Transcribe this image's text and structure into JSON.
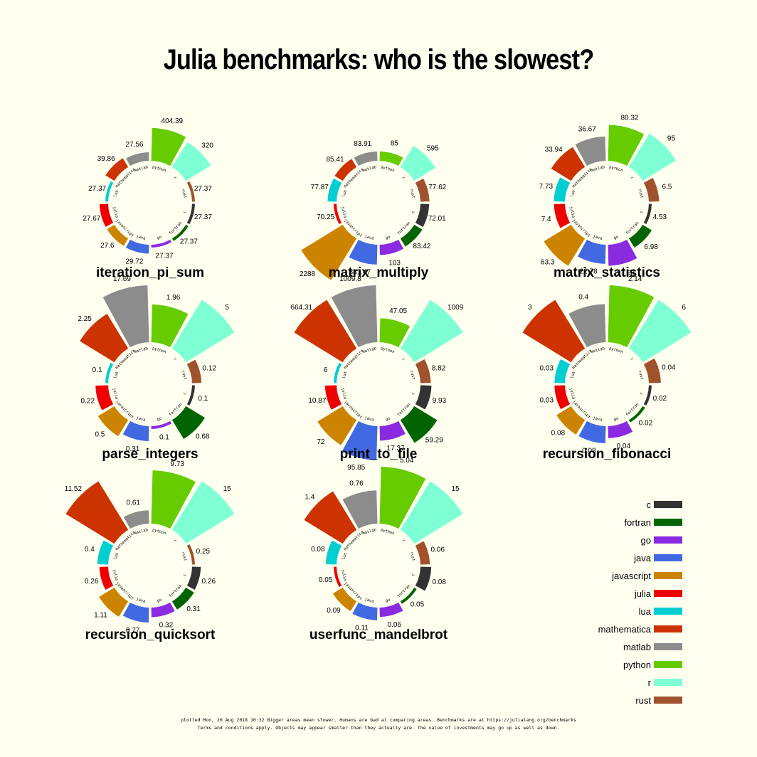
{
  "title": "Julia benchmarks: who is the slowest?",
  "footnote_line1": "plotted Mon, 20 Aug 2018 10:32 Bigger areas mean slower. Humans are bad at comparing areas. Benchmarks are at https://julialang.org/benchmarks",
  "footnote_line2": "Terms and conditions apply. Objects may appear smaller than they actually are. The value of investments may go up as well as down.",
  "languages": [
    "c",
    "fortran",
    "go",
    "java",
    "javascript",
    "julia",
    "lua",
    "mathematica",
    "matlab",
    "python",
    "r",
    "rust"
  ],
  "colors": {
    "c": "#333333",
    "fortran": "#006400",
    "go": "#8a2be2",
    "java": "#4169e1",
    "javascript": "#cc8400",
    "julia": "#ee0000",
    "lua": "#00ced1",
    "mathematica": "#cc3300",
    "matlab": "#8c8c8c",
    "python": "#66cc00",
    "r": "#7fffd4",
    "rust": "#a0522d"
  },
  "ring_labels": {
    "python": "python",
    "r": "r",
    "rust": "rust",
    "c": "c",
    "fortran": "fortran",
    "go": "go",
    "java": "java",
    "javascript": "javascript",
    "julia": "julia",
    "lua": "lua",
    "mathematica": "mathematica",
    "matlab": "matlab"
  },
  "chart_data": [
    {
      "type": "radial-bar",
      "title": "iteration_pi_sum",
      "values": {
        "python": 404.39,
        "r": 320.0,
        "rust": 27.37,
        "c": 27.37,
        "fortran": 27.37,
        "go": 27.37,
        "java": 29.72,
        "javascript": 27.6,
        "julia": 27.67,
        "lua": 27.37,
        "mathematica": 39.86,
        "matlab": 27.56
      }
    },
    {
      "type": "radial-bar",
      "title": "matrix_multiply",
      "values": {
        "python": 85.0,
        "r": 595.0,
        "rust": 77.62,
        "c": 72.01,
        "fortran": 83.42,
        "go": 103.0,
        "java": 381.47,
        "javascript": 2288.0,
        "julia": 70.25,
        "lua": 77.87,
        "mathematica": 85.41,
        "matlab": 83.91
      }
    },
    {
      "type": "radial-bar",
      "title": "matrix_statistics",
      "values": {
        "python": 80.32,
        "r": 95.0,
        "rust": 6.5,
        "c": 4.53,
        "fortran": 6.98,
        "go": 27.58,
        "java": 22.78,
        "javascript": 63.3,
        "julia": 7.4,
        "lua": 7.73,
        "mathematica": 33.94,
        "matlab": 36.67
      }
    },
    {
      "type": "radial-bar",
      "title": "parse_integers",
      "values": {
        "python": 1.96,
        "r": 5.0,
        "rust": 0.12,
        "c": 0.1,
        "fortran": 0.68,
        "go": 0.1,
        "java": 0.31,
        "javascript": 0.5,
        "julia": 0.22,
        "lua": 0.1,
        "mathematica": 2.25,
        "matlab": 17.69
      }
    },
    {
      "type": "radial-bar",
      "title": "print_to_file",
      "values": {
        "python": 47.05,
        "r": 1009.0,
        "rust": 8.82,
        "c": 9.93,
        "fortran": 59.29,
        "go": 17.37,
        "java": 95.85,
        "javascript": 72.0,
        "julia": 10.87,
        "lua": 6.0,
        "mathematica": 664.31,
        "matlab": 1009.8
      }
    },
    {
      "type": "radial-bar",
      "title": "recursion_fibonacci",
      "values": {
        "python": 2.14,
        "r": 6.0,
        "rust": 0.04,
        "c": 0.02,
        "fortran": 0.02,
        "go": 0.04,
        "java": 0.08,
        "javascript": 0.08,
        "julia": 0.03,
        "lua": 0.03,
        "mathematica": 3.0,
        "matlab": 0.4
      }
    },
    {
      "type": "radial-bar",
      "title": "recursion_quicksort",
      "values": {
        "python": 9.73,
        "r": 15.0,
        "rust": 0.25,
        "c": 0.26,
        "fortran": 0.31,
        "go": 0.32,
        "java": 0.77,
        "javascript": 1.11,
        "julia": 0.26,
        "lua": 0.4,
        "mathematica": 11.52,
        "matlab": 0.61
      }
    },
    {
      "type": "radial-bar",
      "title": "userfunc_mandelbrot",
      "values": {
        "python": 5.04,
        "r": 15.0,
        "rust": 0.06,
        "c": 0.08,
        "fortran": 0.05,
        "go": 0.06,
        "java": 0.11,
        "javascript": 0.09,
        "julia": 0.05,
        "lua": 0.08,
        "mathematica": 1.4,
        "matlab": 0.76
      }
    }
  ]
}
